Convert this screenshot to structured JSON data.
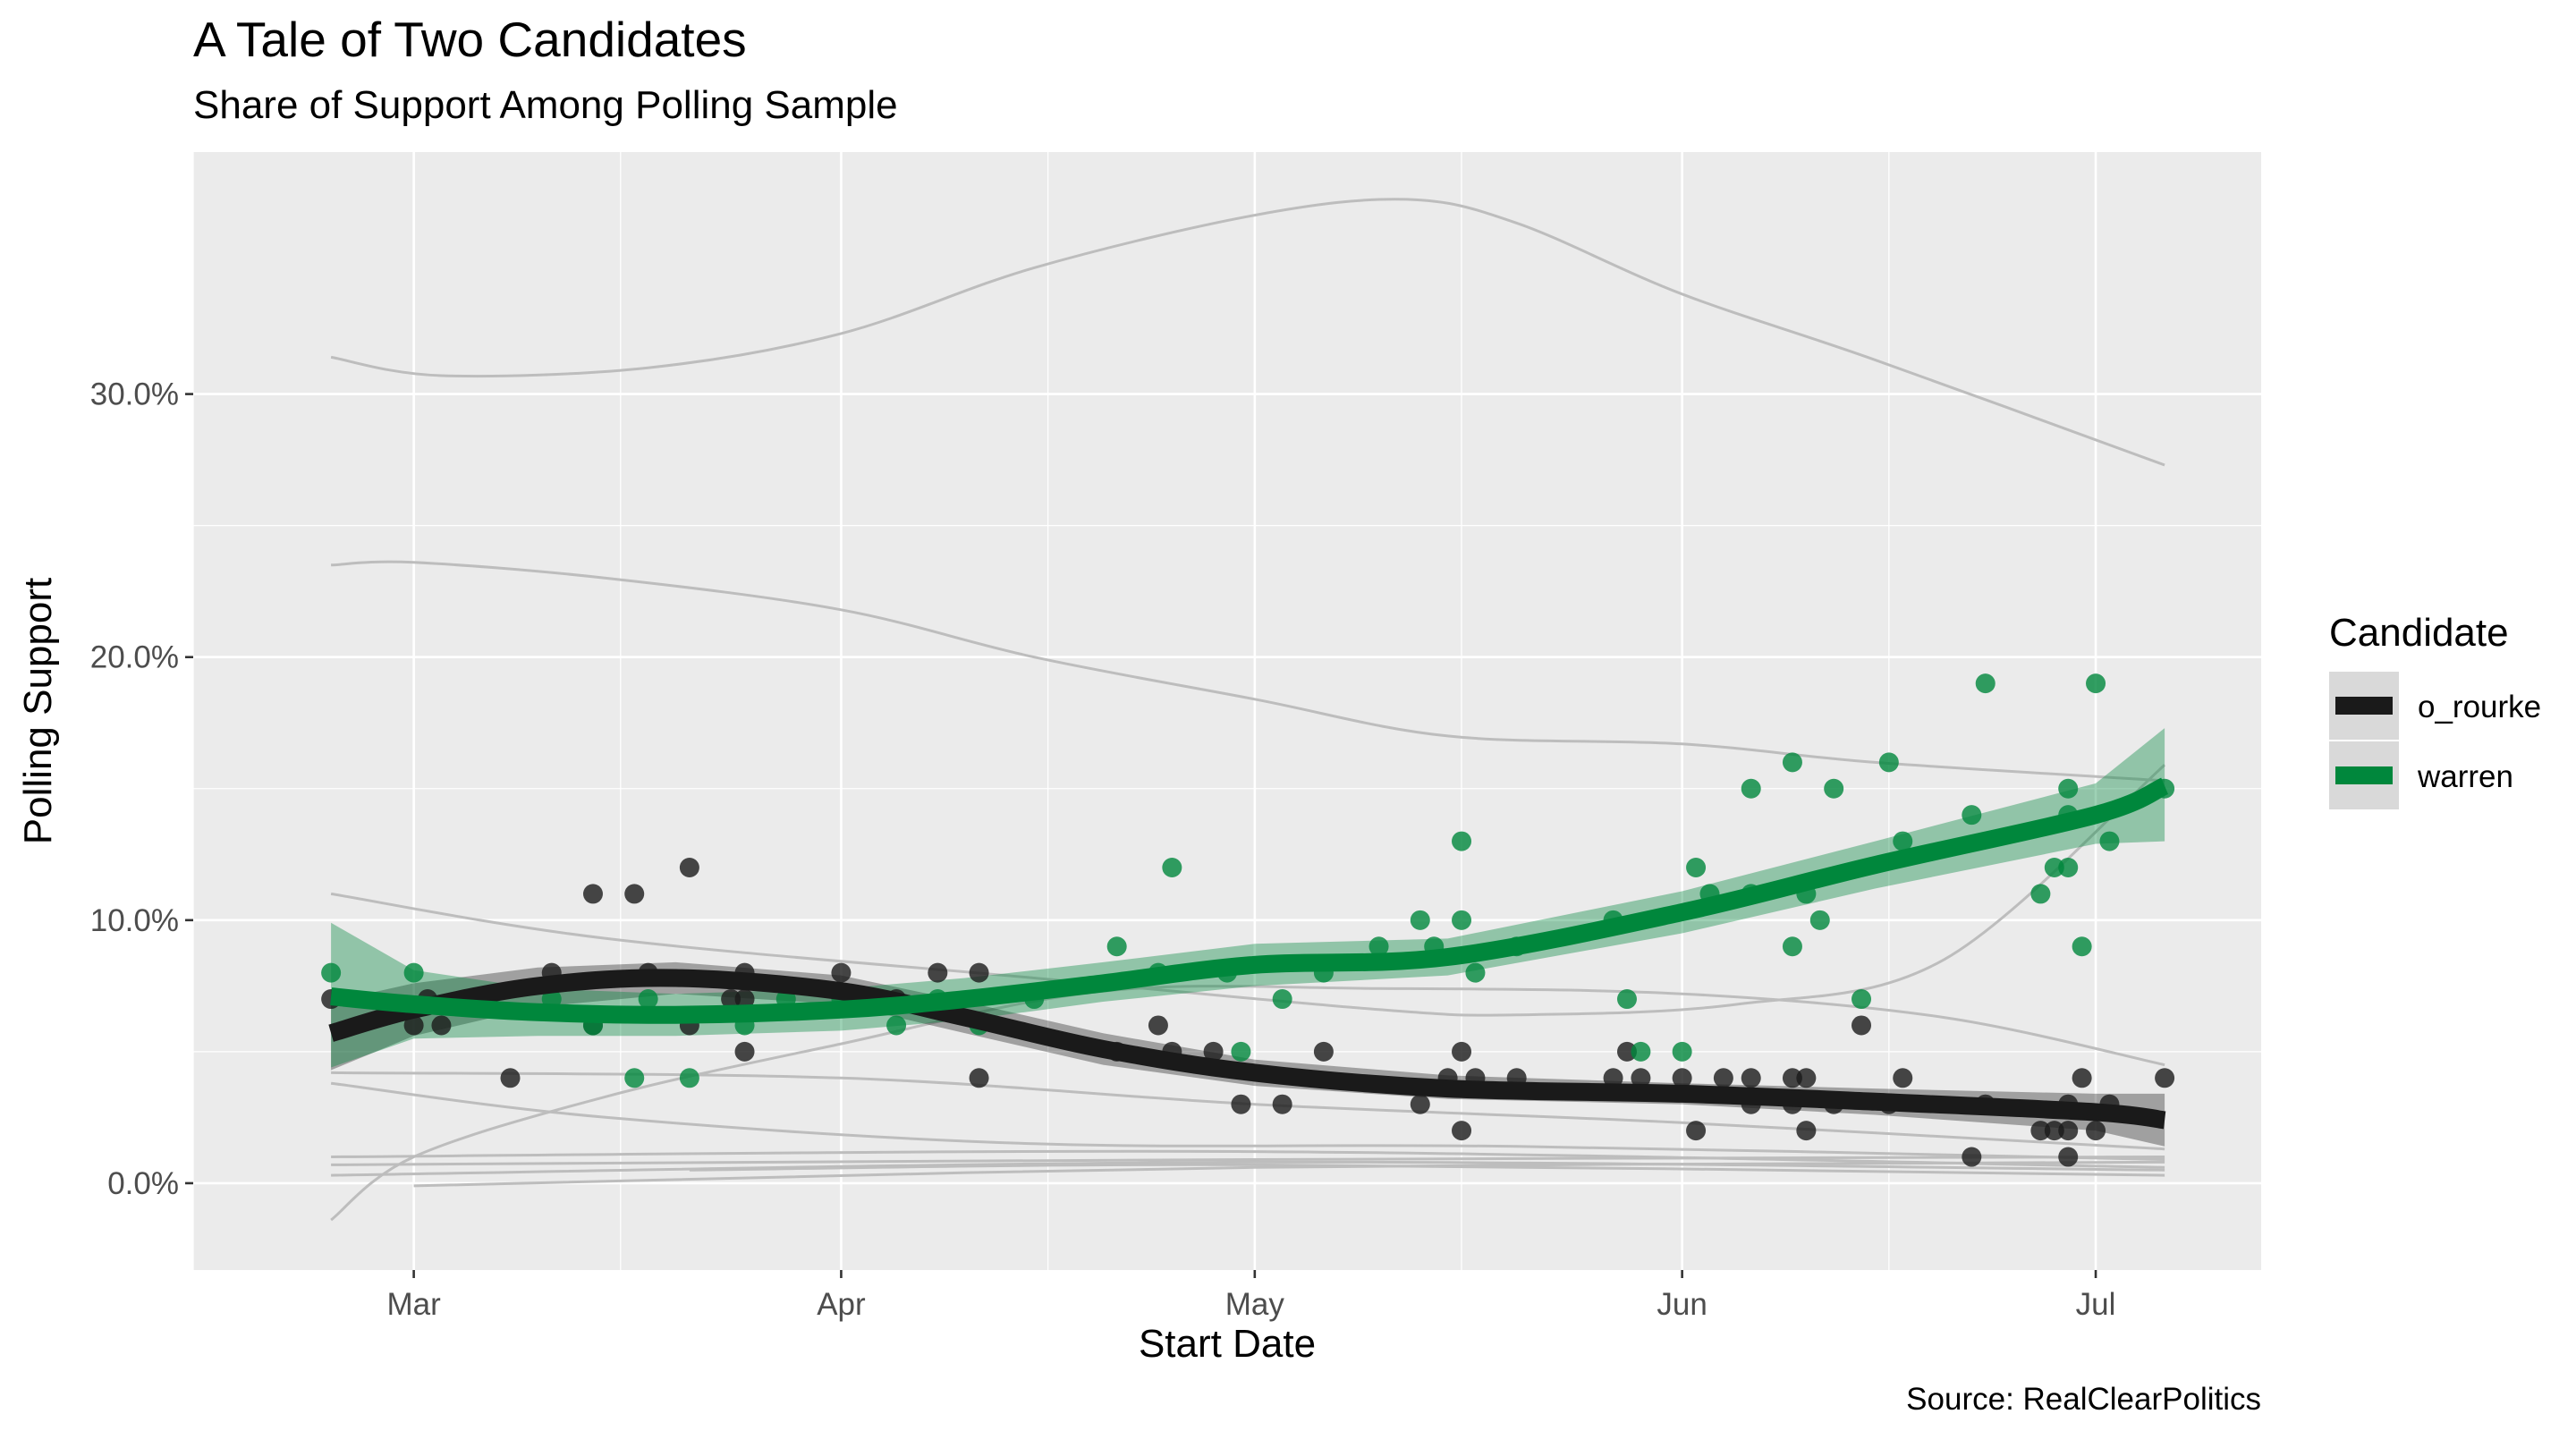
{
  "chart_data": {
    "type": "scatter",
    "title": "A Tale of Two Candidates",
    "subtitle": "Share of Support Among Polling Sample",
    "xlabel": "Start Date",
    "ylabel": "Polling Support",
    "caption": "Source: RealClearPolitics",
    "x_tick_labels": [
      "Mar",
      "Apr",
      "May",
      "Jun",
      "Jul"
    ],
    "x_ticks": [
      "2019-03-01",
      "2019-04-01",
      "2019-05-01",
      "2019-06-01",
      "2019-07-01"
    ],
    "y_tick_labels": [
      "0.0%",
      "10.0%",
      "20.0%",
      "30.0%"
    ],
    "y_ticks": [
      0,
      10,
      20,
      30
    ],
    "xlim": [
      "2019-02-13",
      "2019-07-13"
    ],
    "ylim": [
      -3.3,
      39.2
    ],
    "grid": true,
    "legend": {
      "title": "Candidate",
      "position": "right",
      "labels": [
        "o_rourke",
        "warren"
      ]
    },
    "colors": {
      "o_rourke": "#1a1a1a",
      "warren": "#00873c",
      "background_lines": "#bdbdbd",
      "panel": "#ebebeb",
      "gridline": "#ffffff"
    },
    "series": [
      {
        "name": "o_rourke",
        "points": [
          [
            "2019-02-23",
            7
          ],
          [
            "2019-03-02",
            7
          ],
          [
            "2019-03-03",
            6
          ],
          [
            "2019-03-08",
            4
          ],
          [
            "2019-03-14",
            6
          ],
          [
            "2019-03-21",
            6
          ],
          [
            "2019-03-24",
            7
          ],
          [
            "2019-03-01",
            6
          ],
          [
            "2019-03-11",
            8
          ],
          [
            "2019-03-14",
            11
          ],
          [
            "2019-03-17",
            11
          ],
          [
            "2019-03-18",
            8
          ],
          [
            "2019-03-21",
            12
          ],
          [
            "2019-03-25",
            8
          ],
          [
            "2019-03-25",
            7
          ],
          [
            "2019-03-25",
            5
          ],
          [
            "2019-04-01",
            8
          ],
          [
            "2019-04-05",
            7
          ],
          [
            "2019-04-08",
            8
          ],
          [
            "2019-04-11",
            8
          ],
          [
            "2019-04-11",
            4
          ],
          [
            "2019-04-21",
            5
          ],
          [
            "2019-04-24",
            6
          ],
          [
            "2019-04-25",
            5
          ],
          [
            "2019-04-28",
            5
          ],
          [
            "2019-04-30",
            3
          ],
          [
            "2019-05-03",
            3
          ],
          [
            "2019-05-06",
            5
          ],
          [
            "2019-05-13",
            3
          ],
          [
            "2019-05-15",
            4
          ],
          [
            "2019-05-17",
            4
          ],
          [
            "2019-05-16",
            2
          ],
          [
            "2019-05-16",
            5
          ],
          [
            "2019-05-20",
            4
          ],
          [
            "2019-05-27",
            4
          ],
          [
            "2019-05-28",
            5
          ],
          [
            "2019-05-29",
            4
          ],
          [
            "2019-06-01",
            4
          ],
          [
            "2019-06-02",
            2
          ],
          [
            "2019-06-04",
            4
          ],
          [
            "2019-06-06",
            4
          ],
          [
            "2019-06-06",
            3
          ],
          [
            "2019-06-09",
            4
          ],
          [
            "2019-06-09",
            3
          ],
          [
            "2019-06-10",
            4
          ],
          [
            "2019-06-10",
            2
          ],
          [
            "2019-06-12",
            3
          ],
          [
            "2019-06-14",
            6
          ],
          [
            "2019-06-16",
            3
          ],
          [
            "2019-06-17",
            4
          ],
          [
            "2019-06-22",
            1
          ],
          [
            "2019-06-23",
            3
          ],
          [
            "2019-06-27",
            2
          ],
          [
            "2019-06-28",
            2
          ],
          [
            "2019-06-29",
            2
          ],
          [
            "2019-06-29",
            3
          ],
          [
            "2019-06-29",
            1
          ],
          [
            "2019-06-30",
            4
          ],
          [
            "2019-07-01",
            2
          ],
          [
            "2019-07-02",
            3
          ],
          [
            "2019-07-06",
            4
          ]
        ],
        "trend": [
          [
            "2019-02-23",
            5.7
          ],
          [
            "2019-03-01",
            6.6
          ],
          [
            "2019-03-10",
            7.5
          ],
          [
            "2019-03-20",
            7.8
          ],
          [
            "2019-04-01",
            7.3
          ],
          [
            "2019-04-10",
            6.3
          ],
          [
            "2019-04-20",
            5.1
          ],
          [
            "2019-05-01",
            4.2
          ],
          [
            "2019-05-15",
            3.6
          ],
          [
            "2019-06-01",
            3.4
          ],
          [
            "2019-06-15",
            3.1
          ],
          [
            "2019-07-01",
            2.7
          ],
          [
            "2019-07-06",
            2.4
          ]
        ],
        "trend_band": [
          [
            "2019-02-23",
            4.3,
            6.9
          ],
          [
            "2019-03-01",
            5.6,
            7.6
          ],
          [
            "2019-03-10",
            6.7,
            8.2
          ],
          [
            "2019-03-20",
            7.2,
            8.4
          ],
          [
            "2019-04-01",
            6.8,
            7.9
          ],
          [
            "2019-04-10",
            5.7,
            6.9
          ],
          [
            "2019-04-20",
            4.5,
            5.7
          ],
          [
            "2019-05-01",
            3.7,
            4.7
          ],
          [
            "2019-05-15",
            3.2,
            4.1
          ],
          [
            "2019-06-01",
            3.0,
            3.8
          ],
          [
            "2019-06-15",
            2.6,
            3.6
          ],
          [
            "2019-07-01",
            2.0,
            3.4
          ],
          [
            "2019-07-06",
            1.4,
            3.4
          ]
        ]
      },
      {
        "name": "warren",
        "points": [
          [
            "2019-02-23",
            8
          ],
          [
            "2019-03-01",
            8
          ],
          [
            "2019-03-11",
            7
          ],
          [
            "2019-03-14",
            6
          ],
          [
            "2019-03-18",
            7
          ],
          [
            "2019-03-17",
            4
          ],
          [
            "2019-03-21",
            4
          ],
          [
            "2019-03-25",
            6
          ],
          [
            "2019-03-28",
            7
          ],
          [
            "2019-04-01",
            7
          ],
          [
            "2019-04-05",
            6
          ],
          [
            "2019-04-08",
            7
          ],
          [
            "2019-04-11",
            6
          ],
          [
            "2019-04-15",
            7
          ],
          [
            "2019-04-21",
            9
          ],
          [
            "2019-04-24",
            8
          ],
          [
            "2019-04-25",
            12
          ],
          [
            "2019-04-29",
            8
          ],
          [
            "2019-04-30",
            5
          ],
          [
            "2019-05-03",
            7
          ],
          [
            "2019-05-06",
            8
          ],
          [
            "2019-05-10",
            9
          ],
          [
            "2019-05-13",
            10
          ],
          [
            "2019-05-14",
            9
          ],
          [
            "2019-05-16",
            13
          ],
          [
            "2019-05-16",
            10
          ],
          [
            "2019-05-17",
            8
          ],
          [
            "2019-05-20",
            9
          ],
          [
            "2019-05-27",
            10
          ],
          [
            "2019-05-28",
            7
          ],
          [
            "2019-05-29",
            5
          ],
          [
            "2019-06-01",
            5
          ],
          [
            "2019-06-02",
            12
          ],
          [
            "2019-06-03",
            11
          ],
          [
            "2019-06-06",
            15
          ],
          [
            "2019-06-06",
            11
          ],
          [
            "2019-06-09",
            9
          ],
          [
            "2019-06-09",
            16
          ],
          [
            "2019-06-10",
            11
          ],
          [
            "2019-06-11",
            10
          ],
          [
            "2019-06-12",
            15
          ],
          [
            "2019-06-14",
            7
          ],
          [
            "2019-06-16",
            16
          ],
          [
            "2019-06-17",
            13
          ],
          [
            "2019-06-22",
            14
          ],
          [
            "2019-06-23",
            19
          ],
          [
            "2019-06-27",
            11
          ],
          [
            "2019-06-28",
            12
          ],
          [
            "2019-06-29",
            14
          ],
          [
            "2019-06-29",
            15
          ],
          [
            "2019-06-29",
            12
          ],
          [
            "2019-06-30",
            9
          ],
          [
            "2019-07-01",
            19
          ],
          [
            "2019-07-02",
            13
          ],
          [
            "2019-07-06",
            15
          ]
        ],
        "trend": [
          [
            "2019-02-23",
            7.1
          ],
          [
            "2019-03-01",
            6.8
          ],
          [
            "2019-03-10",
            6.5
          ],
          [
            "2019-03-20",
            6.4
          ],
          [
            "2019-04-01",
            6.6
          ],
          [
            "2019-04-10",
            7.0
          ],
          [
            "2019-04-20",
            7.6
          ],
          [
            "2019-05-01",
            8.3
          ],
          [
            "2019-05-15",
            8.6
          ],
          [
            "2019-06-01",
            10.3
          ],
          [
            "2019-06-15",
            12.1
          ],
          [
            "2019-07-01",
            14.0
          ],
          [
            "2019-07-06",
            15.1
          ]
        ],
        "trend_band": [
          [
            "2019-02-23",
            4.4,
            9.9
          ],
          [
            "2019-03-01",
            5.5,
            8.1
          ],
          [
            "2019-03-10",
            5.6,
            7.4
          ],
          [
            "2019-03-20",
            5.6,
            7.2
          ],
          [
            "2019-04-01",
            5.8,
            7.4
          ],
          [
            "2019-04-10",
            6.2,
            7.8
          ],
          [
            "2019-04-20",
            6.9,
            8.4
          ],
          [
            "2019-05-01",
            7.5,
            9.1
          ],
          [
            "2019-05-15",
            7.9,
            9.3
          ],
          [
            "2019-06-01",
            9.5,
            11.1
          ],
          [
            "2019-06-15",
            11.2,
            13.0
          ],
          [
            "2019-07-01",
            12.9,
            15.2
          ],
          [
            "2019-07-06",
            13.0,
            17.3
          ]
        ]
      }
    ],
    "background_trends": [
      [
        [
          "2019-02-23",
          31.4
        ],
        [
          "2019-03-03",
          30.7
        ],
        [
          "2019-03-18",
          31.0
        ],
        [
          "2019-04-01",
          32.3
        ],
        [
          "2019-04-15",
          34.8
        ],
        [
          "2019-05-01",
          36.8
        ],
        [
          "2019-05-12",
          37.4
        ],
        [
          "2019-05-20",
          36.5
        ],
        [
          "2019-06-01",
          33.8
        ],
        [
          "2019-06-15",
          31.3
        ],
        [
          "2019-07-06",
          27.3
        ]
      ],
      [
        [
          "2019-02-23",
          23.5
        ],
        [
          "2019-03-01",
          23.6
        ],
        [
          "2019-03-15",
          23.0
        ],
        [
          "2019-04-01",
          21.8
        ],
        [
          "2019-04-15",
          20.0
        ],
        [
          "2019-05-01",
          18.4
        ],
        [
          "2019-05-15",
          17.0
        ],
        [
          "2019-06-01",
          16.7
        ],
        [
          "2019-06-15",
          16.0
        ],
        [
          "2019-07-06",
          15.3
        ]
      ],
      [
        [
          "2019-02-23",
          11.0
        ],
        [
          "2019-03-15",
          9.3
        ],
        [
          "2019-04-15",
          7.8
        ],
        [
          "2019-05-10",
          6.6
        ],
        [
          "2019-05-20",
          6.4
        ],
        [
          "2019-06-05",
          6.8
        ],
        [
          "2019-06-20",
          8.5
        ],
        [
          "2019-07-06",
          15.9
        ]
      ],
      [
        [
          "2019-02-23",
          -1.4
        ],
        [
          "2019-03-01",
          1.0
        ],
        [
          "2019-03-15",
          3.3
        ],
        [
          "2019-04-01",
          5.3
        ],
        [
          "2019-04-20",
          7.3
        ],
        [
          "2019-05-10",
          7.4
        ],
        [
          "2019-06-01",
          7.2
        ],
        [
          "2019-06-20",
          6.3
        ],
        [
          "2019-07-06",
          4.5
        ]
      ],
      [
        [
          "2019-02-23",
          3.8
        ],
        [
          "2019-03-15",
          2.5
        ],
        [
          "2019-04-15",
          1.5
        ],
        [
          "2019-05-20",
          1.4
        ],
        [
          "2019-07-06",
          0.9
        ]
      ],
      [
        [
          "2019-02-23",
          4.2
        ],
        [
          "2019-04-01",
          4.0
        ],
        [
          "2019-05-01",
          3.0
        ],
        [
          "2019-06-01",
          2.3
        ],
        [
          "2019-07-06",
          1.3
        ]
      ],
      [
        [
          "2019-02-23",
          1.0
        ],
        [
          "2019-05-01",
          1.2
        ],
        [
          "2019-07-06",
          0.6
        ]
      ],
      [
        [
          "2019-02-23",
          0.7
        ],
        [
          "2019-05-01",
          0.9
        ],
        [
          "2019-07-06",
          1.0
        ]
      ],
      [
        [
          "2019-02-23",
          0.3
        ],
        [
          "2019-05-01",
          0.8
        ],
        [
          "2019-07-06",
          0.5
        ]
      ],
      [
        [
          "2019-03-01",
          -0.1
        ],
        [
          "2019-05-01",
          0.6
        ],
        [
          "2019-07-06",
          0.8
        ]
      ],
      [
        [
          "2019-03-21",
          0.5
        ],
        [
          "2019-05-01",
          0.7
        ],
        [
          "2019-07-06",
          0.3
        ]
      ]
    ]
  }
}
